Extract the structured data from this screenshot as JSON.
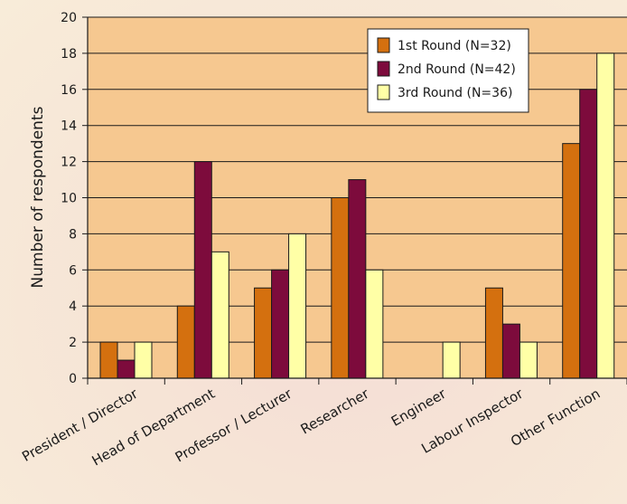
{
  "chart_data": {
    "type": "bar",
    "title": "",
    "xlabel": "",
    "ylabel": "Number of respondents",
    "ylim": [
      0,
      20
    ],
    "yticks": [
      0,
      2,
      4,
      6,
      8,
      10,
      12,
      14,
      16,
      18,
      20
    ],
    "grid": true,
    "legend_position": "top-right",
    "categories": [
      "President / Director",
      "Head of Department",
      "Professor / Lecturer",
      "Researcher",
      "Engineer",
      "Labour Inspector",
      "Other Function"
    ],
    "series": [
      {
        "name": "1st Round (N=32)",
        "color": "#d4700f",
        "values": [
          2,
          4,
          5,
          10,
          0,
          5,
          13
        ]
      },
      {
        "name": "2nd Round (N=42)",
        "color": "#7d0b3c",
        "values": [
          1,
          12,
          6,
          11,
          0,
          3,
          16
        ]
      },
      {
        "name": "3rd Round (N=36)",
        "color": "#ffffa6",
        "values": [
          2,
          7,
          8,
          6,
          2,
          2,
          18
        ]
      }
    ],
    "plot_background": "#f6c890"
  }
}
